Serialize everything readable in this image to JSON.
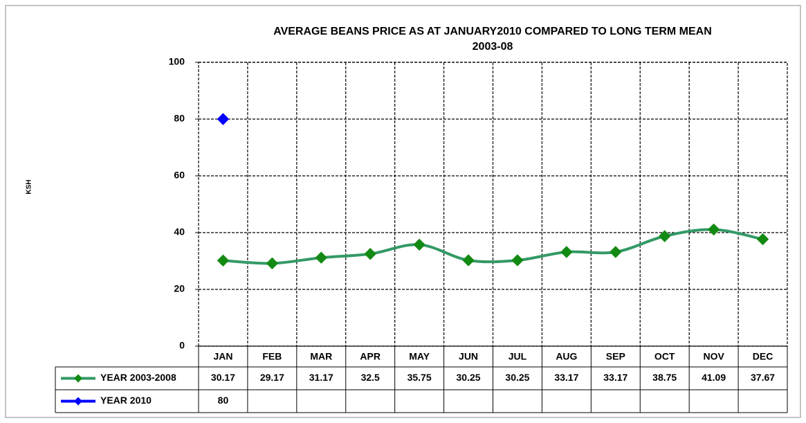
{
  "chart_data": {
    "type": "line",
    "title": [
      "AVERAGE BEANS PRICE AS AT  JANUARY2010 COMPARED TO LONG TERM MEAN",
      "2003-08"
    ],
    "y_label": "KSH",
    "categories": [
      "JAN",
      "FEB",
      "MAR",
      "APR",
      "MAY",
      "JUN",
      "JUL",
      "AUG",
      "SEP",
      "OCT",
      "NOV",
      "DEC"
    ],
    "series": [
      {
        "name": "YEAR 2003-2008",
        "color": "#339966",
        "marker_color": "#138a13",
        "values": [
          30.17,
          29.17,
          31.17,
          32.5,
          35.75,
          30.25,
          30.25,
          33.17,
          33.17,
          38.75,
          41.09,
          37.67
        ]
      },
      {
        "name": "YEAR 2010",
        "color": "#0000ff",
        "marker_color": "#0000ff",
        "values": [
          80,
          null,
          null,
          null,
          null,
          null,
          null,
          null,
          null,
          null,
          null,
          null
        ]
      }
    ],
    "ylim": [
      0,
      100
    ],
    "yticks": [
      0,
      20,
      40,
      60,
      80,
      100
    ],
    "grid": true,
    "data_table": true
  }
}
